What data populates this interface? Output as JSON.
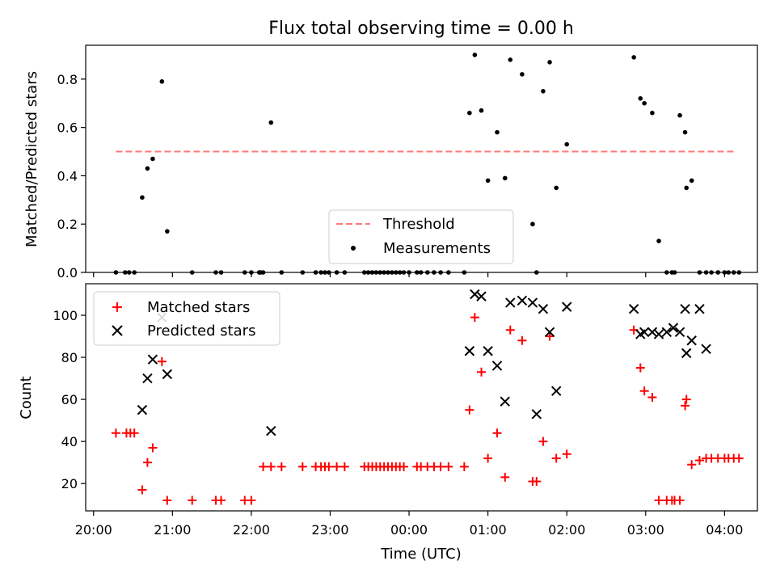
{
  "chart_data": [
    {
      "type": "scatter",
      "title": "Flux total observing time = 0.00 h",
      "ylabel": "Matched/Predicted stars",
      "xlabel": "",
      "xlim": [
        "20:00",
        "04:30"
      ],
      "ylim": [
        0,
        0.95
      ],
      "yticks": [
        0.0,
        0.2,
        0.4,
        0.6,
        0.8
      ],
      "ytick_labels": [
        "0.0",
        "0.2",
        "0.4",
        "0.6",
        "0.8"
      ],
      "xticks": [
        "20:00",
        "21:00",
        "22:00",
        "23:00",
        "00:00",
        "01:00",
        "02:00",
        "03:00",
        "04:00"
      ],
      "legend_position": "bottom-center",
      "threshold": {
        "name": "Threshold",
        "value": 0.5,
        "x": [
          "20:17",
          "04:07"
        ],
        "color": "#ff7777",
        "style": "dashed"
      },
      "series": [
        {
          "name": "Measurements",
          "marker": "dot",
          "color": "#000000",
          "x": [
            "20:17",
            "20:24",
            "20:27",
            "20:31",
            "20:37",
            "20:41",
            "20:45",
            "20:52",
            "20:56",
            "21:15",
            "21:33",
            "21:37",
            "21:55",
            "22:00",
            "22:06",
            "22:07",
            "22:09",
            "22:15",
            "22:23",
            "22:39",
            "22:49",
            "22:53",
            "22:56",
            "22:59",
            "23:05",
            "23:11",
            "23:26",
            "23:29",
            "23:32",
            "23:35",
            "23:38",
            "23:41",
            "23:44",
            "23:47",
            "23:50",
            "23:53",
            "23:56",
            "24:00",
            "24:06",
            "24:09",
            "24:14",
            "24:19",
            "24:24",
            "24:30",
            "24:42",
            "24:46",
            "24:50",
            "24:55",
            "25:00",
            "25:07",
            "25:13",
            "25:17",
            "25:26",
            "25:34",
            "25:37",
            "25:42",
            "25:47",
            "25:52",
            "26:00",
            "26:51",
            "26:56",
            "26:59",
            "27:05",
            "27:10",
            "27:16",
            "27:20",
            "27:22",
            "27:26",
            "27:30",
            "27:31",
            "27:35",
            "27:41",
            "27:46",
            "27:50",
            "27:55",
            "28:00",
            "28:03",
            "28:07",
            "28:11"
          ],
          "y": [
            0,
            0,
            0,
            0,
            0.31,
            0.43,
            0.47,
            0.79,
            0.17,
            0,
            0,
            0,
            0,
            0,
            0,
            0,
            0,
            0.62,
            0,
            0,
            0,
            0,
            0,
            0,
            0,
            0,
            0,
            0,
            0,
            0,
            0,
            0,
            0,
            0,
            0,
            0,
            0,
            0,
            0,
            0,
            0,
            0,
            0,
            0,
            0,
            0.66,
            0.9,
            0.67,
            0.38,
            0.58,
            0.39,
            0.88,
            0.82,
            0.2,
            0,
            0.75,
            0.87,
            0.35,
            0.53,
            0.89,
            0.72,
            0.7,
            0.66,
            0.13,
            0,
            0,
            0,
            0.65,
            0.58,
            0.35,
            0.38,
            0,
            0,
            0,
            0,
            0,
            0,
            0,
            0
          ]
        }
      ]
    },
    {
      "type": "scatter",
      "title": "",
      "ylabel": "Count",
      "xlabel": "Time (UTC)",
      "xlim": [
        "20:00",
        "04:30"
      ],
      "ylim": [
        7,
        115
      ],
      "yticks": [
        20,
        40,
        60,
        80,
        100
      ],
      "ytick_labels": [
        "20",
        "40",
        "60",
        "80",
        "100"
      ],
      "xticks": [
        "20:00",
        "21:00",
        "22:00",
        "23:00",
        "00:00",
        "01:00",
        "02:00",
        "03:00",
        "04:00"
      ],
      "legend_position": "top-left",
      "series": [
        {
          "name": "Matched stars",
          "marker": "plus",
          "color": "#ff0000",
          "x": [
            "20:17",
            "20:25",
            "20:28",
            "20:31",
            "20:37",
            "20:41",
            "20:45",
            "20:52",
            "20:56",
            "21:15",
            "21:33",
            "21:37",
            "21:55",
            "22:00",
            "22:09",
            "22:15",
            "22:23",
            "22:39",
            "22:49",
            "22:53",
            "22:56",
            "22:59",
            "23:05",
            "23:11",
            "23:26",
            "23:29",
            "23:32",
            "23:35",
            "23:38",
            "23:41",
            "23:44",
            "23:47",
            "23:50",
            "23:53",
            "23:56",
            "24:06",
            "24:09",
            "24:14",
            "24:19",
            "24:24",
            "24:30",
            "24:42",
            "24:46",
            "24:50",
            "24:55",
            "25:00",
            "25:07",
            "25:13",
            "25:17",
            "25:26",
            "25:34",
            "25:37",
            "25:42",
            "25:47",
            "25:52",
            "26:00",
            "26:51",
            "26:56",
            "26:59",
            "27:05",
            "27:10",
            "27:16",
            "27:20",
            "27:22",
            "27:26",
            "27:30",
            "27:31",
            "27:35",
            "27:41",
            "27:46",
            "27:50",
            "27:55",
            "28:00",
            "28:03",
            "28:07",
            "28:11"
          ],
          "y": [
            44,
            44,
            44,
            44,
            17,
            30,
            37,
            78,
            12,
            12,
            12,
            12,
            12,
            12,
            28,
            28,
            28,
            28,
            28,
            28,
            28,
            28,
            28,
            28,
            28,
            28,
            28,
            28,
            28,
            28,
            28,
            28,
            28,
            28,
            28,
            28,
            28,
            28,
            28,
            28,
            28,
            28,
            55,
            99,
            73,
            32,
            44,
            23,
            93,
            88,
            21,
            21,
            40,
            90,
            32,
            34,
            93,
            75,
            64,
            61,
            12,
            12,
            12,
            12,
            12,
            57,
            60,
            29,
            31,
            32,
            32,
            32,
            32,
            32,
            32,
            32
          ]
        },
        {
          "name": "Predicted stars",
          "marker": "x",
          "color": "#000000",
          "x": [
            "20:37",
            "20:41",
            "20:45",
            "20:52",
            "20:56",
            "22:15",
            "24:46",
            "24:50",
            "24:55",
            "25:00",
            "25:07",
            "25:13",
            "25:17",
            "25:26",
            "25:34",
            "25:37",
            "25:42",
            "25:47",
            "25:52",
            "26:00",
            "26:51",
            "26:56",
            "26:59",
            "27:05",
            "27:10",
            "27:16",
            "27:21",
            "27:26",
            "27:30",
            "27:31",
            "27:35",
            "27:41",
            "27:46"
          ],
          "y": [
            55,
            70,
            79,
            99,
            72,
            45,
            83,
            110,
            109,
            83,
            76,
            59,
            106,
            107,
            106,
            53,
            103,
            92,
            64,
            104,
            103,
            91,
            92,
            92,
            91,
            92,
            94,
            92,
            103,
            82,
            88,
            103,
            84
          ]
        }
      ]
    }
  ]
}
